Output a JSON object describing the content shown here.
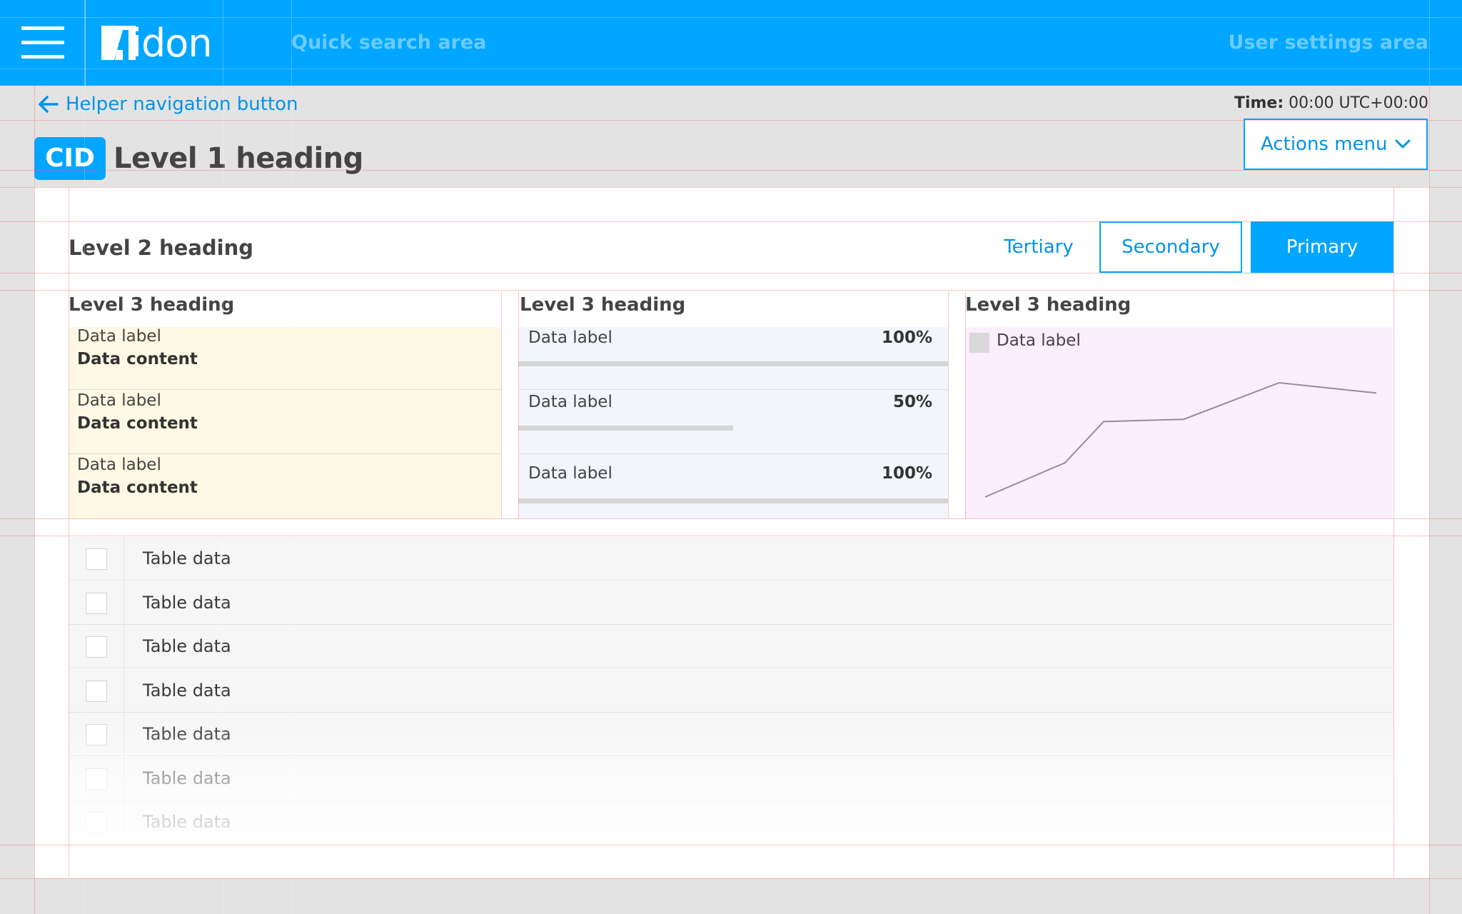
{
  "app": {
    "brand": "idon",
    "brand_mark": "A",
    "quick_search_placeholder": "Quick search area",
    "user_settings_label": "User settings area",
    "accent_color": "#00a6ff"
  },
  "header": {
    "helper_nav_label": "Helper navigation button",
    "time_label": "Time:",
    "time_value": "00:00 UTC+00:00",
    "badge": "CID",
    "title": "Level 1 heading",
    "actions_menu_label": "Actions menu"
  },
  "section": {
    "title": "Level 2 heading",
    "buttons": {
      "tertiary": "Tertiary",
      "secondary": "Secondary",
      "primary": "Primary"
    }
  },
  "columns": {
    "kv": {
      "heading": "Level 3 heading",
      "items": [
        {
          "label": "Data label",
          "value": "Data content"
        },
        {
          "label": "Data label",
          "value": "Data content"
        },
        {
          "label": "Data label",
          "value": "Data content"
        }
      ]
    },
    "progress": {
      "heading": "Level 3 heading",
      "items": [
        {
          "label": "Data label",
          "value_text": "100%",
          "value": 1.0
        },
        {
          "label": "Data label",
          "value_text": "50%",
          "value": 0.5
        },
        {
          "label": "Data label",
          "value_text": "100%",
          "value": 1.0
        }
      ]
    },
    "chart": {
      "heading": "Level 3 heading",
      "legend_label": "Data label"
    }
  },
  "chart_data": {
    "type": "line",
    "title": "",
    "xlabel": "",
    "ylabel": "",
    "x": [
      0,
      1,
      2,
      3,
      4,
      5
    ],
    "series": [
      {
        "name": "Data label",
        "values": [
          0,
          0.3,
          0.66,
          0.68,
          1.0,
          0.91
        ],
        "color": "#9a8c97"
      }
    ],
    "ylim": [
      0,
      1
    ],
    "grid": false,
    "legend": "top-left"
  },
  "table": {
    "rows": [
      {
        "cell": "Table data"
      },
      {
        "cell": "Table data"
      },
      {
        "cell": "Table data"
      },
      {
        "cell": "Table data"
      },
      {
        "cell": "Table data"
      },
      {
        "cell": "Table data"
      },
      {
        "cell": "Table data"
      }
    ]
  }
}
